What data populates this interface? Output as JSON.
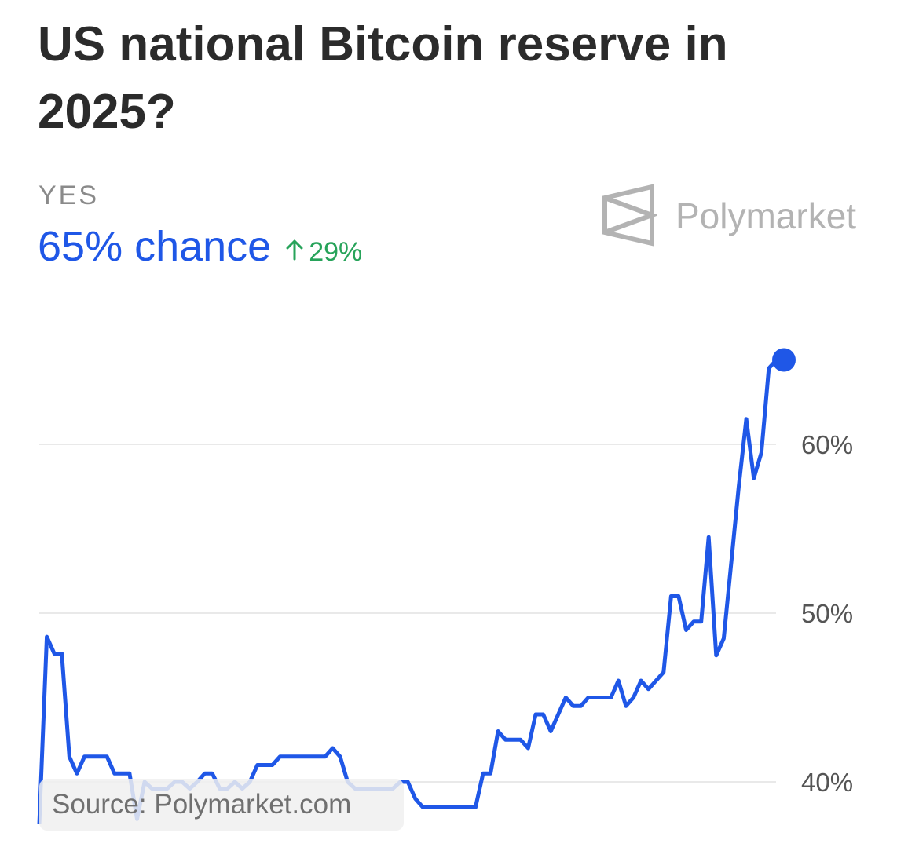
{
  "header": {
    "title": "US national Bitcoin reserve in 2025?",
    "outcome_label": "YES",
    "chance_text": "65% chance",
    "delta_text": "29%",
    "delta_icon": "arrow-up-icon",
    "brand": "Polymarket"
  },
  "colors": {
    "line": "#1f57e7",
    "delta": "#27a35a",
    "grid": "#e9e9e9"
  },
  "footer": {
    "source_text": "Source: Polymarket.com"
  },
  "chart_data": {
    "type": "line",
    "title": "US national Bitcoin reserve in 2025?",
    "xlabel": "",
    "ylabel": "",
    "ylim": [
      37.5,
      65.5
    ],
    "yticks": [
      40,
      50,
      60
    ],
    "ytick_labels": [
      "40%",
      "50%",
      "60%"
    ],
    "grid": true,
    "series": [
      {
        "values": [
          37.5,
          48.6,
          47.6,
          47.6,
          41.5,
          40.5,
          41.5,
          41.5,
          41.5,
          41.5,
          40.5,
          40.5,
          40.5,
          37.8,
          40.0,
          39.6,
          39.6,
          39.6,
          40.0,
          40.0,
          39.6,
          40.0,
          40.5,
          40.5,
          39.6,
          39.6,
          40.0,
          39.6,
          40.0,
          41.0,
          41.0,
          41.0,
          41.5,
          41.5,
          41.5,
          41.5,
          41.5,
          41.5,
          41.5,
          42.0,
          41.5,
          40.0,
          39.6,
          39.6,
          39.6,
          39.6,
          39.6,
          39.6,
          40.0,
          40.0,
          39.0,
          38.5,
          38.5,
          38.5,
          38.5,
          38.5,
          38.5,
          38.5,
          38.5,
          40.5,
          40.5,
          43.0,
          42.5,
          42.5,
          42.5,
          42.0,
          44.0,
          44.0,
          43.0,
          44.0,
          45.0,
          44.5,
          44.5,
          45.0,
          45.0,
          45.0,
          45.0,
          46.0,
          44.5,
          45.0,
          46.0,
          45.5,
          46.0,
          46.5,
          51.0,
          51.0,
          49.0,
          49.5,
          49.5,
          54.5,
          47.5,
          48.5,
          53.0,
          57.5,
          61.5,
          58.0,
          59.5,
          64.5,
          65.0,
          65.0
        ]
      }
    ],
    "end_marker": true
  }
}
